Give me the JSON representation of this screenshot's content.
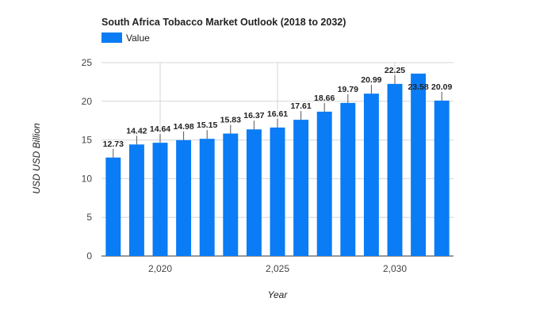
{
  "chart_data": {
    "type": "bar",
    "title": "South Africa Tobacco Market Outlook (2018 to 2032)",
    "xlabel": "Year",
    "ylabel": "USD USD Billion",
    "legend": {
      "label": "Value",
      "placement": "top-left"
    },
    "series_color": "#0a7cf5",
    "x": [
      2018,
      2019,
      2020,
      2021,
      2022,
      2023,
      2024,
      2025,
      2026,
      2027,
      2028,
      2029,
      2030,
      2031,
      2032
    ],
    "values": [
      12.73,
      14.42,
      14.64,
      14.98,
      15.15,
      15.83,
      16.37,
      16.61,
      17.61,
      18.66,
      19.79,
      20.99,
      22.25,
      23.58,
      20.09
    ],
    "data_labels": [
      "12.73",
      "14.42",
      "14.64",
      "14.98",
      "15.15",
      "15.83",
      "16.37",
      "16.61",
      "17.61",
      "18.66",
      "19.79",
      "20.99",
      "22.25",
      "23.58",
      "20.09"
    ],
    "ylim": [
      0,
      25
    ],
    "yticks": [
      0,
      5,
      10,
      15,
      20,
      25
    ],
    "xticks": [
      2020,
      2025,
      2030
    ],
    "xtick_labels": [
      "2,020",
      "2,025",
      "2,030"
    ],
    "grid": true
  }
}
